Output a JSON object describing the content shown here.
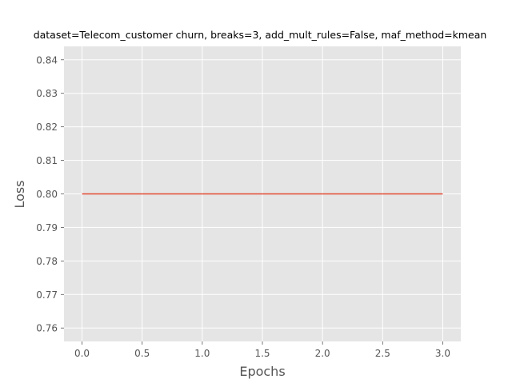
{
  "chart_data": {
    "type": "line",
    "title": "dataset=Telecom_customer churn, breaks=3, add_mult_rules=False, maf_method=kmean",
    "xlabel": "Epochs",
    "ylabel": "Loss",
    "xlim": [
      -0.15,
      3.15
    ],
    "ylim": [
      0.756,
      0.844
    ],
    "xticks": [
      0.0,
      0.5,
      1.0,
      1.5,
      2.0,
      2.5,
      3.0
    ],
    "xtick_labels": [
      "0.0",
      "0.5",
      "1.0",
      "1.5",
      "2.0",
      "2.5",
      "3.0"
    ],
    "yticks": [
      0.76,
      0.77,
      0.78,
      0.79,
      0.8,
      0.81,
      0.82,
      0.83,
      0.84
    ],
    "ytick_labels": [
      "0.76",
      "0.77",
      "0.78",
      "0.79",
      "0.80",
      "0.81",
      "0.82",
      "0.83",
      "0.84"
    ],
    "grid": true,
    "series": [
      {
        "x": [
          0,
          1,
          2,
          3
        ],
        "values": [
          0.8,
          0.8,
          0.8,
          0.8
        ],
        "color": "#E24A33"
      }
    ],
    "colors": {
      "axes_bg": "#E5E5E5",
      "grid": "#FFFFFF",
      "tick_text": "#555555",
      "label_text": "#555555",
      "title_text": "#000000"
    }
  }
}
